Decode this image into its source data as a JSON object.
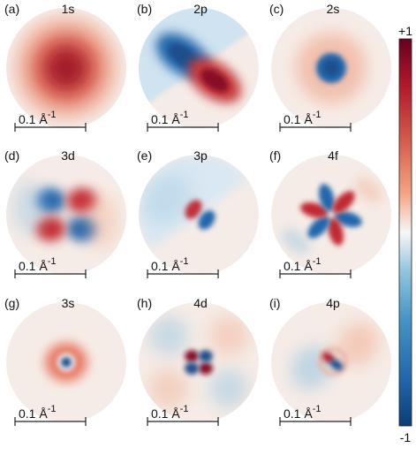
{
  "panels": [
    {
      "letter": "(a)",
      "orbital": "1s",
      "scale": "0.1 Å",
      "exp": "-1",
      "pattern": "1s"
    },
    {
      "letter": "(b)",
      "orbital": "2p",
      "scale": "0.1 Å",
      "exp": "-1",
      "pattern": "2p"
    },
    {
      "letter": "(c)",
      "orbital": "2s",
      "scale": "0.1 Å",
      "exp": "-1",
      "pattern": "2s"
    },
    {
      "letter": "(d)",
      "orbital": "3d",
      "scale": "0.1 Å",
      "exp": "-1",
      "pattern": "3d"
    },
    {
      "letter": "(e)",
      "orbital": "3p",
      "scale": "0.1 Å",
      "exp": "-1",
      "pattern": "3p"
    },
    {
      "letter": "(f)",
      "orbital": "4f",
      "scale": "0.1 Å",
      "exp": "-1",
      "pattern": "4f"
    },
    {
      "letter": "(g)",
      "orbital": "3s",
      "scale": "0.1 Å",
      "exp": "-1",
      "pattern": "3s"
    },
    {
      "letter": "(h)",
      "orbital": "4d",
      "scale": "0.1 Å",
      "exp": "-1",
      "pattern": "4d"
    },
    {
      "letter": "(i)",
      "orbital": "4p",
      "scale": "0.1 Å",
      "exp": "-1",
      "pattern": "4p"
    }
  ],
  "colorbar": {
    "max_label": "+1",
    "min_label": "-1",
    "colors": {
      "positive": "#67001f",
      "mid": "#f7f7f7",
      "negative": "#0b3d78"
    }
  }
}
